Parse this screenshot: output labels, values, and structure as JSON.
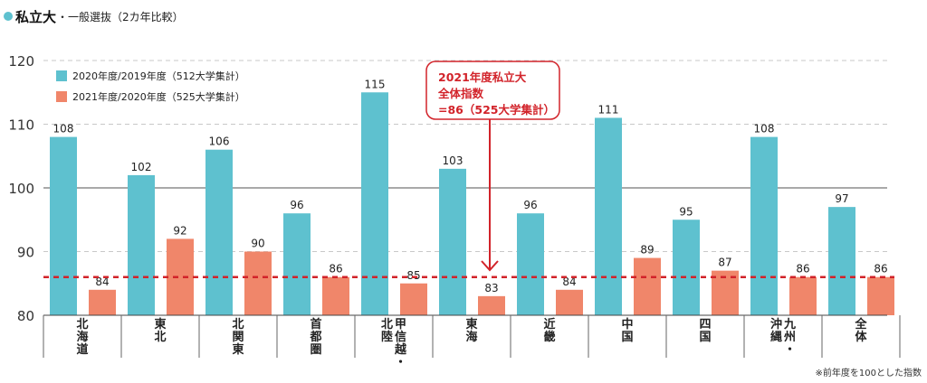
{
  "title": {
    "main": "私立大",
    "sub": "・一般選抜（2カ年比較）"
  },
  "footnote": "※前年度を100とした指数",
  "colors": {
    "series_2020": "#5ec1cf",
    "series_2021": "#f0866a",
    "reference": "#d2232a",
    "baseline": "#a9a9a9",
    "grid": "#c8c8c8"
  },
  "annotation": {
    "lines": [
      "2021年度私立大",
      "全体指数",
      "=86（525大学集計）"
    ]
  },
  "chart_data": {
    "type": "bar",
    "categories": [
      "北海道",
      "東北",
      "北関東",
      "首都圏",
      "甲信越・北陸",
      "東海",
      "近畿",
      "中国",
      "四国",
      "九州・沖縄",
      "全体"
    ],
    "category_labels": [
      [
        [
          "北",
          "海",
          "道"
        ]
      ],
      [
        [
          "東",
          "北"
        ]
      ],
      [
        [
          "北",
          "関",
          "東"
        ]
      ],
      [
        [
          "首",
          "都",
          "圏"
        ]
      ],
      [
        [
          "北",
          "陸"
        ],
        [
          "甲",
          "信",
          "越",
          "・"
        ]
      ],
      [
        [
          "東",
          "海"
        ]
      ],
      [
        [
          "近",
          "畿"
        ]
      ],
      [
        [
          "中",
          "国"
        ]
      ],
      [
        [
          "四",
          "国"
        ]
      ],
      [
        [
          "沖",
          "縄"
        ],
        [
          "九",
          "州",
          "・"
        ]
      ],
      [
        [
          "全",
          "体"
        ]
      ]
    ],
    "series": [
      {
        "name": "2020年度/2019年度（512大学集計）",
        "values": [
          108,
          102,
          106,
          96,
          115,
          103,
          96,
          111,
          95,
          108,
          97
        ]
      },
      {
        "name": "2021年度/2020年度（525大学集計）",
        "values": [
          84,
          92,
          90,
          86,
          85,
          83,
          84,
          89,
          87,
          86,
          86
        ]
      }
    ],
    "ylim": [
      80,
      120
    ],
    "yticks": [
      80,
      90,
      100,
      110,
      120
    ],
    "baseline": 100,
    "reference_line": 86,
    "legend_position": "top-left",
    "grid": true
  }
}
